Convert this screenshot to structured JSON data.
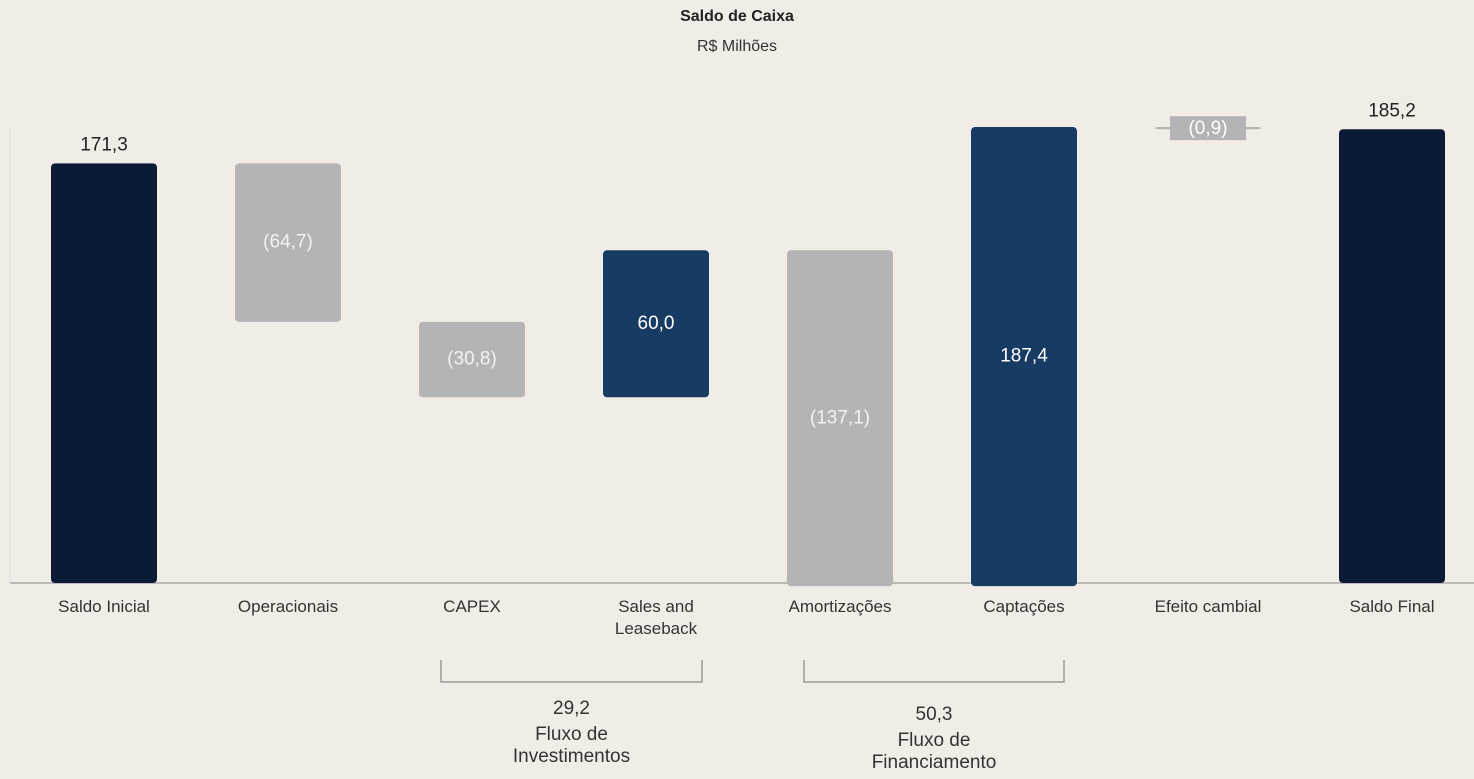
{
  "chart_data": {
    "type": "waterfall",
    "title": "Saldo de Caixa",
    "subtitle": "R$ Milhões",
    "categories": [
      "Saldo Inicial",
      "Operacionais",
      "CAPEX",
      "Sales and Leaseback",
      "Amortizações",
      "Captações",
      "Efeito cambial",
      "Saldo Final"
    ],
    "kinds": [
      "total",
      "delta",
      "delta",
      "delta",
      "delta",
      "delta",
      "delta",
      "total"
    ],
    "values": [
      171.3,
      -64.7,
      -30.8,
      60.0,
      -137.1,
      187.4,
      -0.9,
      185.2
    ],
    "value_labels": [
      "171,3",
      "(64,7)",
      "(30,8)",
      "60,0",
      "(137,1)",
      "187,4",
      "(0,9)",
      "185,2"
    ],
    "colors": {
      "total": "#0b1b36",
      "increase": "#173b63",
      "decrease": "#b4b4b4"
    },
    "annotations": [
      {
        "text": "29,2",
        "label": "Fluxo de Investimentos"
      },
      {
        "text": "50,3",
        "label": "Fluxo de Financiamento"
      }
    ]
  }
}
